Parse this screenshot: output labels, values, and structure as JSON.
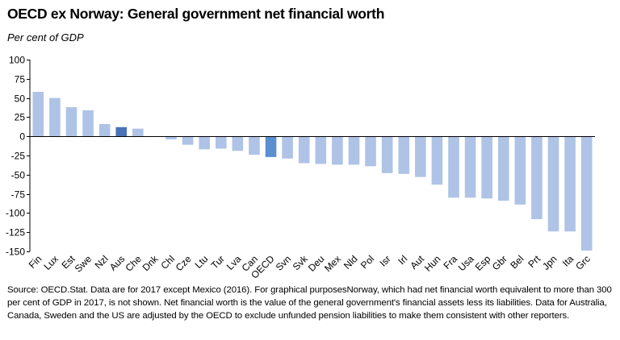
{
  "title": "OECD ex Norway: General government net financial worth",
  "subtitle": "Per cent of GDP",
  "source_lines": [
    "Source: OECD.Stat.  Data are for 2017 except Mexico (2016).  For graphical purposesNorway, which had net financial worth equivalent to more than 300",
    "per cent of GDP in 2017, is not shown.  Net financial worth is the value of the general government's financial assets less its liabilities. Data for Australia,",
    "Canada, Sweden and the US are adjusted by the OECD to exclude unfunded pension liabilities to make them consistent with other reporters."
  ],
  "colors": {
    "bar_default": "#aec3e6",
    "bar_oecd": "#5b8fd0",
    "bar_australia": "#4a72b8",
    "axis": "#000000",
    "text": "#000000"
  },
  "chart_data": {
    "type": "bar",
    "title": "OECD ex Norway: General government net financial worth",
    "ylabel": "Per cent of GDP",
    "xlabel": "",
    "ylim": [
      -150,
      100
    ],
    "yticks": [
      100,
      75,
      50,
      25,
      0,
      -25,
      -50,
      -75,
      -100,
      -125,
      -150
    ],
    "grid": false,
    "categories": [
      "Fin",
      "Lux",
      "Est",
      "Swe",
      "Nzl",
      "Aus",
      "Che",
      "Dnk",
      "Chl",
      "Cze",
      "Ltu",
      "Tur",
      "Lva",
      "Can",
      "OECD",
      "Svn",
      "Svk",
      "Deu",
      "Mex",
      "Nld",
      "Pol",
      "Isr",
      "Irl",
      "Aut",
      "Hun",
      "Fra",
      "Usa",
      "Esp",
      "Gbr",
      "Bel",
      "Prt",
      "Jpn",
      "Ita",
      "Grc"
    ],
    "values": [
      58,
      50,
      38,
      34,
      16,
      12,
      10,
      0,
      -4,
      -11,
      -17,
      -16,
      -19,
      -24,
      -27,
      -29,
      -35,
      -36,
      -37,
      -37,
      -39,
      -48,
      -49,
      -53,
      -63,
      -80,
      -80,
      -81,
      -84,
      -89,
      -108,
      -124,
      -124,
      -149
    ],
    "highlight": {
      "Aus": "bar_australia",
      "OECD": "bar_oecd"
    }
  }
}
